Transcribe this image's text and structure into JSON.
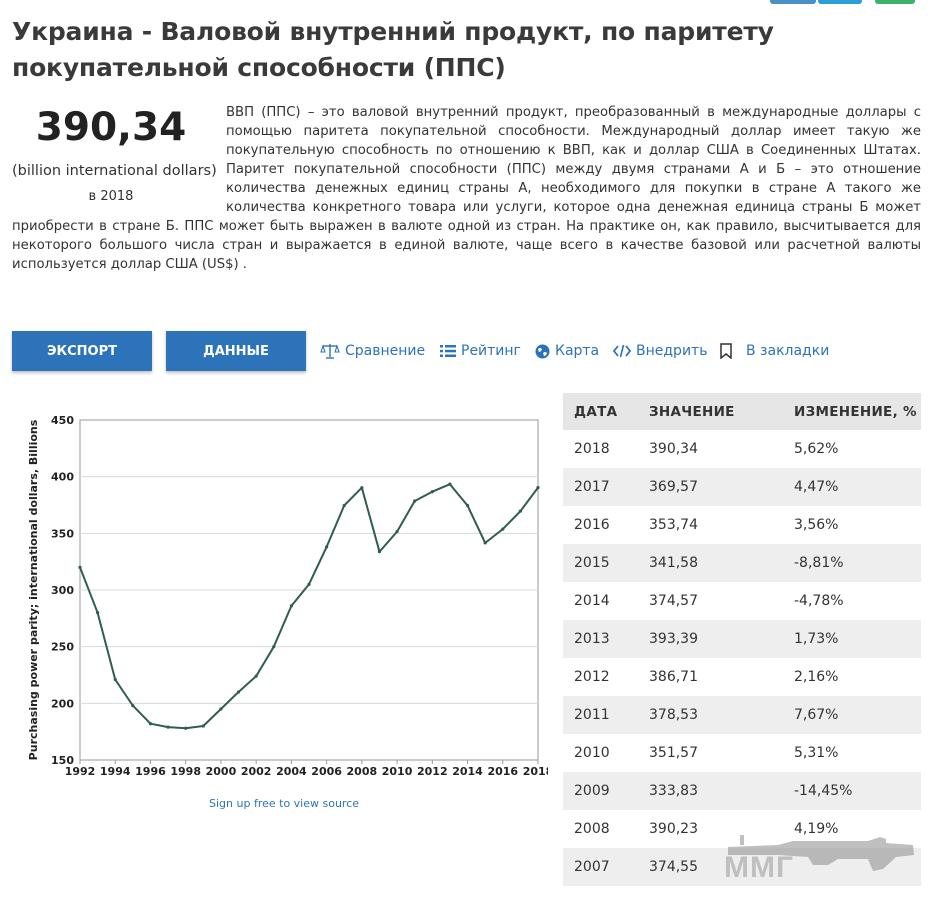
{
  "page": {
    "title": "Украина - Валовой внутренний продукт, по паритету покупательной способности (ППС)"
  },
  "summary": {
    "value": "390,34",
    "unit": "(billion international dollars)",
    "year": "в 2018",
    "description": "ВВП (ППС) – это валовой внутренний продукт, преобразованный в международные доллары с помощью паритета покупательной способности. Международный доллар имеет такую же покупательную способность по отношению к ВВП, как и доллар США в Соединенных Штатах. Паритет покупательной способности (ППС) между двумя странами А и Б – это отношение количества денежных единиц страны А, необходимого для покупки в стране А такого же количества конкретного товара или услуги, которое одна денежная единица страны Б может приобрести в стране Б. ППС может быть выражен в валюте одной из стран. На практике он, как правило, высчитывается для некоторого большого числа стран и выражается в единой валюте, чаще всего в качестве базовой или расчетной валюты используется доллар США (US$) ."
  },
  "toolbar": {
    "export_label": "ЭКСПОРТ",
    "data_label": "ДАННЫЕ",
    "compare_label": "Сравнение",
    "rating_label": "Рейтинг",
    "map_label": "Карта",
    "embed_label": "Внедрить",
    "bookmark_label": "В закладки"
  },
  "chart_data": {
    "type": "line",
    "title": "",
    "xlabel": "",
    "ylabel": "Purchasing power parity; international dollars, Billions",
    "x": [
      1992,
      1993,
      1994,
      1995,
      1996,
      1997,
      1998,
      1999,
      2000,
      2001,
      2002,
      2003,
      2004,
      2005,
      2006,
      2007,
      2008,
      2009,
      2010,
      2011,
      2012,
      2013,
      2014,
      2015,
      2016,
      2017,
      2018
    ],
    "series": [
      {
        "name": "",
        "values": [
          320,
          280,
          221,
          198,
          182,
          179,
          178,
          180,
          195,
          210,
          224,
          250,
          286,
          305,
          338,
          374.55,
          390.23,
          333.83,
          351.57,
          378.53,
          386.71,
          393.39,
          374.57,
          341.58,
          353.74,
          369.57,
          390.34
        ],
        "color": "#2e5e4e"
      }
    ],
    "xticks": [
      "1992",
      "1994",
      "1996",
      "1998",
      "2000",
      "2002",
      "2004",
      "2006",
      "2008",
      "2010",
      "2012",
      "2014",
      "2016",
      "2018"
    ],
    "yticks": [
      "450",
      "400",
      "350",
      "300",
      "250",
      "200",
      "150"
    ],
    "ylim": [
      150,
      450
    ],
    "grid": "horizontal",
    "source_note": "Sign up free to view source"
  },
  "table": {
    "headers": [
      "ДАТА",
      "ЗНАЧЕНИЕ",
      "ИЗМЕНЕНИЕ, %"
    ],
    "rows": [
      [
        "2018",
        "390,34",
        "5,62%"
      ],
      [
        "2017",
        "369,57",
        "4,47%"
      ],
      [
        "2016",
        "353,74",
        "3,56%"
      ],
      [
        "2015",
        "341,58",
        "-8,81%"
      ],
      [
        "2014",
        "374,57",
        "-4,78%"
      ],
      [
        "2013",
        "393,39",
        "1,73%"
      ],
      [
        "2012",
        "386,71",
        "2,16%"
      ],
      [
        "2011",
        "378,53",
        "7,67%"
      ],
      [
        "2010",
        "351,57",
        "5,31%"
      ],
      [
        "2009",
        "333,83",
        "-14,45%"
      ],
      [
        "2008",
        "390,23",
        "4,19%"
      ],
      [
        "2007",
        "374,55",
        ""
      ]
    ]
  },
  "watermark": {
    "text": "ММГ"
  },
  "colors": {
    "accent": "#2d73b9",
    "line": "#2e5e4e",
    "table_header_bg": "#e6e6e6",
    "table_stripe": "#eeeeee"
  }
}
